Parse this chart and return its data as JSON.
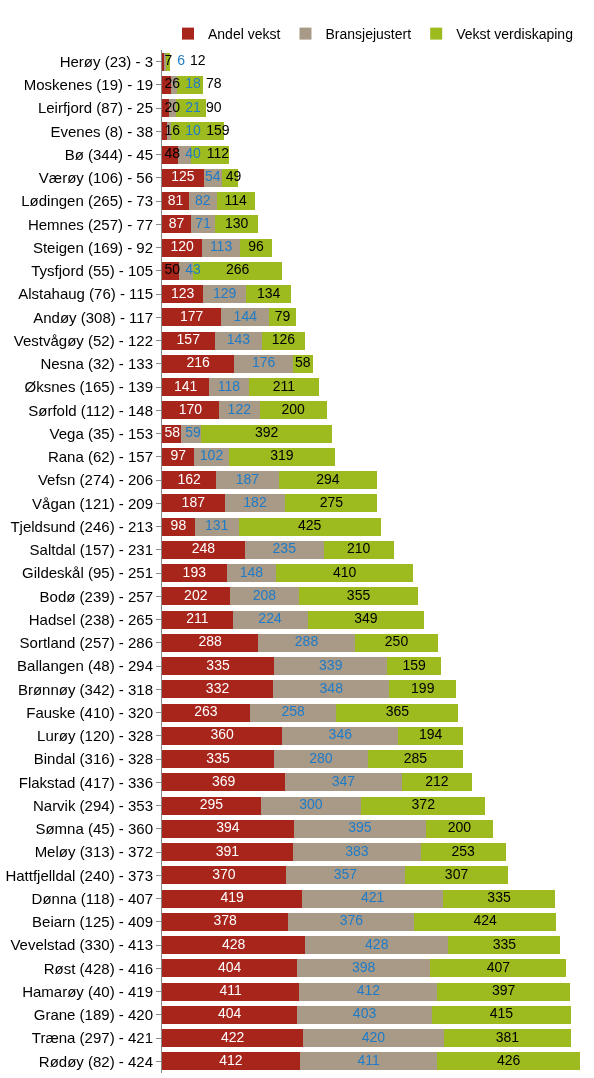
{
  "chart_data": {
    "type": "bar",
    "orientation": "horizontal",
    "stacked": true,
    "data_labels": true,
    "legend": "top",
    "categories": [
      "Herøy (23) - 3",
      "Moskenes (19) - 19",
      "Leirfjord (87) - 25",
      "Evenes (8) - 38",
      "Bø (344) - 45",
      "Værøy (106) - 56",
      "Lødingen (265) - 73",
      "Hemnes (257) - 77",
      "Steigen (169) - 92",
      "Tysfjord (55) - 105",
      "Alstahaug (76) - 115",
      "Andøy (308) - 117",
      "Vestvågøy (52) - 122",
      "Nesna (32) - 133",
      "Øksnes (165) - 139",
      "Sørfold (112) - 148",
      "Vega (35) - 153",
      "Rana (62) - 157",
      "Vefsn (274) - 206",
      "Vågan (121) - 209",
      "Tjeldsund (246) - 213",
      "Saltdal (157) - 231",
      "Gildeskål (95) - 251",
      "Bodø (239) - 257",
      "Hadsel (238) - 265",
      "Sortland (257) - 286",
      "Ballangen (48) - 294",
      "Brønnøy (342) - 318",
      "Fauske (410) - 320",
      "Lurøy (120) - 328",
      "Bindal (316) - 328",
      "Flakstad (417) - 336",
      "Narvik (294) - 353",
      "Sømna (45) - 360",
      "Meløy (313) - 372",
      "Hattfjelldal (240) - 373",
      "Dønna (118) - 407",
      "Beiarn (125) - 409",
      "Vevelstad (330) - 413",
      "Røst (428) - 416",
      "Hamarøy (40) - 419",
      "Grane (189) - 420",
      "Træna (297) - 421",
      "Rødøy (82) - 424"
    ],
    "series": [
      {
        "name": "Andel vekst",
        "color": "#a8251c",
        "values": [
          7,
          26,
          20,
          16,
          48,
          125,
          81,
          87,
          120,
          50,
          123,
          177,
          157,
          216,
          141,
          170,
          58,
          97,
          162,
          187,
          98,
          248,
          193,
          202,
          211,
          288,
          335,
          332,
          263,
          360,
          335,
          369,
          295,
          394,
          391,
          370,
          419,
          378,
          428,
          404,
          411,
          404,
          422,
          412
        ]
      },
      {
        "name": "Bransjejustert",
        "color": "#a89a86",
        "values": [
          6,
          18,
          21,
          10,
          40,
          54,
          82,
          71,
          113,
          43,
          129,
          144,
          143,
          176,
          118,
          122,
          59,
          102,
          187,
          182,
          131,
          235,
          148,
          208,
          224,
          288,
          339,
          348,
          258,
          346,
          280,
          347,
          300,
          395,
          383,
          357,
          421,
          376,
          428,
          398,
          412,
          403,
          420,
          411
        ]
      },
      {
        "name": "Vekst verdiskaping",
        "color": "#9dbb1f",
        "values": [
          12,
          78,
          90,
          159,
          112,
          49,
          114,
          130,
          96,
          266,
          134,
          79,
          126,
          58,
          211,
          200,
          392,
          319,
          294,
          275,
          425,
          210,
          410,
          355,
          349,
          250,
          159,
          199,
          365,
          194,
          285,
          212,
          372,
          200,
          253,
          307,
          335,
          424,
          335,
          407,
          397,
          415,
          381,
          426
        ]
      }
    ]
  }
}
